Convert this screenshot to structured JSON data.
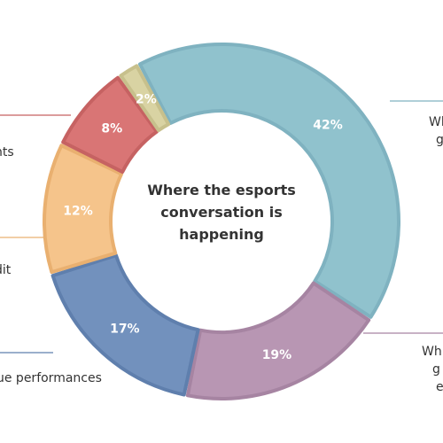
{
  "chart_data": {
    "type": "pie",
    "title": "Where the esports conversation is happening",
    "title_lines": [
      "Where the esports",
      "conversation is",
      "happening"
    ],
    "slices": [
      {
        "label_fragment": "Wh… g…",
        "value": 42,
        "display": "42%",
        "color": "#90c2cd",
        "stroke": "#7fb2c0"
      },
      {
        "label_fragment": "Wh… g… e…",
        "value": 19,
        "display": "19%",
        "color": "#b896b3",
        "stroke": "#a684a2"
      },
      {
        "label_fragment": "…ue performances",
        "value": 17,
        "display": "17%",
        "color": "#7291bd",
        "stroke": "#5f7fad"
      },
      {
        "label_fragment": "…dit",
        "value": 12,
        "display": "12%",
        "color": "#f5c48b",
        "stroke": "#e9b070"
      },
      {
        "label_fragment": "…nts",
        "value": 8,
        "display": "8%",
        "color": "#d97575",
        "stroke": "#c66262"
      },
      {
        "label_fragment": "",
        "value": 2,
        "display": "2%",
        "color": "#d9d3a3",
        "stroke": "#c7c08c"
      }
    ],
    "side_labels": [
      {
        "text": "Wh",
        "color": "#333333"
      },
      {
        "text": "g",
        "color": "#333333"
      },
      {
        "text": "nts",
        "color": "#333333"
      },
      {
        "text": "dit",
        "color": "#333333"
      },
      {
        "text": "ue performances",
        "color": "#333333"
      },
      {
        "text": "Wh",
        "color": "#333333"
      },
      {
        "text": "g",
        "color": "#333333"
      },
      {
        "text": "e",
        "color": "#333333"
      }
    ],
    "leader_colors": [
      "#7fb2c0",
      "#a684a2",
      "#5f7fad",
      "#e9b070",
      "#c66262"
    ]
  }
}
